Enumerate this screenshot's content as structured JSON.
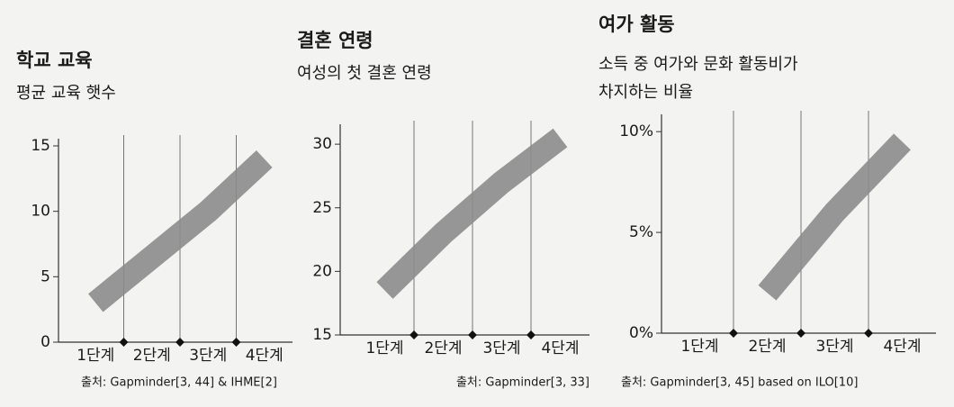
{
  "chart_data": [
    {
      "type": "line",
      "title": "학교 교육",
      "subtitle": [
        "평균 교육 햇수"
      ],
      "categories": [
        "1단계",
        "2단계",
        "3단계",
        "4단계"
      ],
      "series": [
        {
          "color": "#8c8c8c",
          "values": [
            3,
            6.5,
            10,
            14
          ]
        }
      ],
      "ylim": [
        0,
        15
      ],
      "yticks": [
        0,
        5,
        10,
        15
      ],
      "source": "출처: Gapminder[3, 44] & IHME[2]"
    },
    {
      "type": "line",
      "title": "결혼 연령",
      "subtitle": [
        "여성의 첫 결혼 연령"
      ],
      "categories": [
        "1단계",
        "2단계",
        "3단계",
        "4단계"
      ],
      "series": [
        {
          "color": "#8c8c8c",
          "values": [
            18.5,
            23,
            27,
            30.5
          ]
        }
      ],
      "ylim": [
        15,
        31
      ],
      "yticks": [
        15,
        20,
        25,
        30
      ],
      "source": "출처: Gapminder[3, 33]"
    },
    {
      "type": "line",
      "title": "여가 활동",
      "subtitle": [
        "소득 중 여가와 문화 활동비가",
        "차지하는 비율"
      ],
      "categories": [
        "1단계",
        "2단계",
        "3단계",
        "4단계"
      ],
      "series": [
        {
          "color": "#8c8c8c",
          "values": [
            null,
            2,
            6,
            9.5
          ]
        }
      ],
      "ylim": [
        0,
        10.5
      ],
      "yticks": [
        {
          "value": 0,
          "label": "0%"
        },
        {
          "value": 5,
          "label": "5%"
        },
        {
          "value": 10,
          "label": "10%"
        }
      ],
      "source": "출처: Gapminder[3, 45] based on ILO[10]"
    }
  ]
}
